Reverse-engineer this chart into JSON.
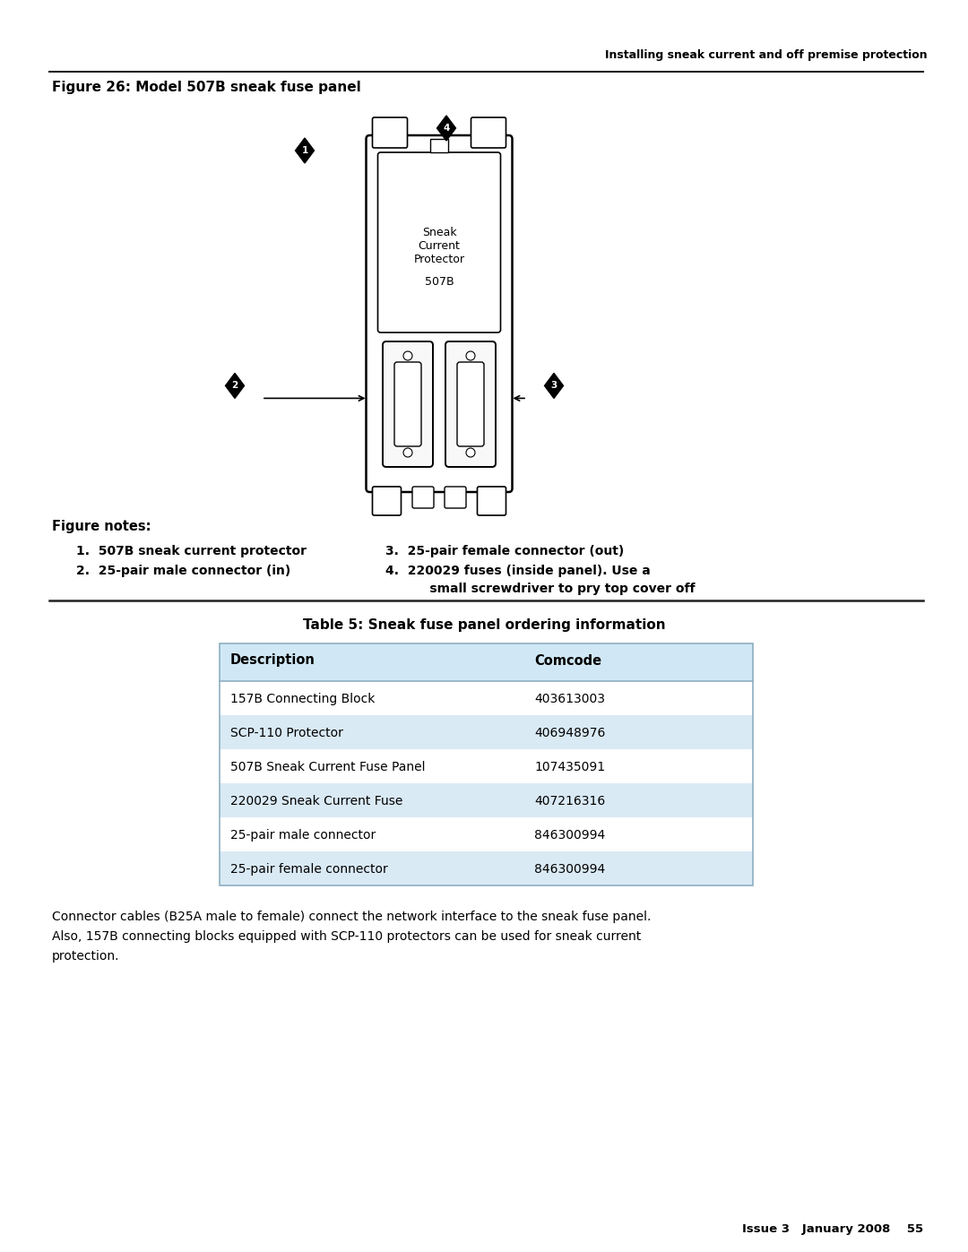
{
  "page_header": "Installing sneak current and off premise protection",
  "figure_title": "Figure 26: Model 507B sneak fuse panel",
  "figure_notes_title": "Figure notes:",
  "figure_notes_left_1": "1.  507B sneak current protector",
  "figure_notes_left_2": "2.  25-pair male connector (in)",
  "figure_notes_right_3": "3.  25-pair female connector (out)",
  "figure_notes_right_4a": "4.  220029 fuses (inside panel). Use a",
  "figure_notes_right_4b": "     small screwdriver to pry top cover off",
  "table_title": "Table 5: Sneak fuse panel ordering information",
  "table_headers": [
    "Description",
    "Comcode"
  ],
  "table_rows": [
    [
      "157B Connecting Block",
      "403613003"
    ],
    [
      "SCP-110 Protector",
      "406948976"
    ],
    [
      "507B Sneak Current Fuse Panel",
      "107435091"
    ],
    [
      "220029 Sneak Current Fuse",
      "407216316"
    ],
    [
      "25-pair male connector",
      "846300994"
    ],
    [
      "25-pair female connector",
      "846300994"
    ]
  ],
  "table_row_shaded": [
    false,
    true,
    false,
    true,
    false,
    true
  ],
  "table_shade_color": "#daeaf5",
  "table_header_shade": "#d0e8f5",
  "body_text_1": "Connector cables (B25A male to female) connect the network interface to the sneak fuse panel.",
  "body_text_2": "Also, 157B connecting blocks equipped with SCP-110 protectors can be used for sneak current",
  "body_text_3": "protection.",
  "footer_text": "Issue 3   January 2008    55",
  "bg_color": "#ffffff",
  "sneak_label": "Sneak\nCurrent\nProtector",
  "model_label": "507B"
}
